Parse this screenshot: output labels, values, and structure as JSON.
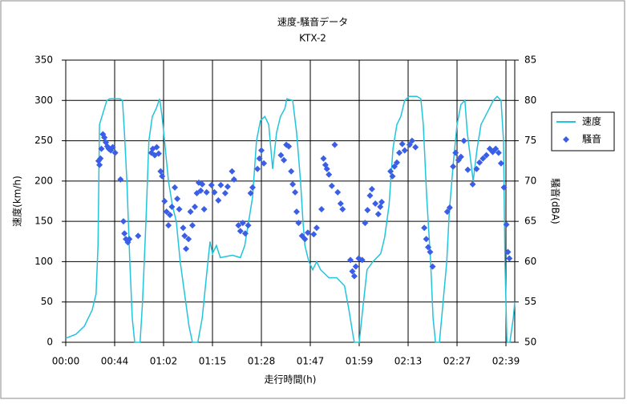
{
  "chart_data": {
    "type": "line+scatter",
    "title": "速度-騒音データ",
    "subtitle": "KTX-2",
    "xlabel": "走行時間(h)",
    "ylabel": "速度(km/h)",
    "y2label": "騒音(dBA)",
    "xlim": [
      0,
      91.8
    ],
    "xticks": [
      {
        "value": 0,
        "label": "00:00"
      },
      {
        "value": 10,
        "label": "00:44"
      },
      {
        "value": 20,
        "label": "01:02"
      },
      {
        "value": 30,
        "label": "01:15"
      },
      {
        "value": 40,
        "label": "01:28"
      },
      {
        "value": 50,
        "label": "01:47"
      },
      {
        "value": 60,
        "label": "01:59"
      },
      {
        "value": 70,
        "label": "02:13"
      },
      {
        "value": 80,
        "label": "02:27"
      },
      {
        "value": 90,
        "label": "02:39"
      }
    ],
    "ylim": [
      0,
      350
    ],
    "yticks": [
      0,
      50,
      100,
      150,
      200,
      250,
      300,
      350
    ],
    "y2lim": [
      50,
      85
    ],
    "y2ticks": [
      50,
      55,
      60,
      65,
      70,
      75,
      80,
      85
    ],
    "grid": true,
    "legend": "right",
    "series": [
      {
        "name": "速度",
        "type": "line",
        "color": "#22c4dc",
        "x": [
          0,
          2.1,
          3.8,
          5.4,
          6.2,
          6.6,
          6.9,
          7.4,
          7.9,
          8.4,
          9.0,
          11.1,
          11.6,
          12.0,
          12.5,
          13.1,
          13.6,
          14.1,
          15.2,
          15.7,
          16.4,
          17.0,
          17.7,
          18.5,
          19.2,
          19.7,
          20.2,
          21.0,
          21.8,
          22.6,
          23.4,
          24.3,
          25.2,
          25.9,
          27.0,
          27.9,
          28.9,
          29.5,
          30.0,
          30.8,
          31.6,
          34.1,
          35.7,
          36.6,
          37.4,
          38.2,
          39.0,
          39.8,
          40.7,
          41.5,
          42.3,
          43.1,
          43.9,
          44.8,
          45.2,
          46.4,
          47.2,
          48.0,
          48.5,
          48.9,
          49.7,
          50.5,
          51.3,
          52.1,
          53.8,
          55.4,
          57.0,
          57.9,
          58.7,
          59.0,
          60.0,
          60.7,
          61.6,
          62.8,
          64.4,
          65.2,
          66.1,
          66.9,
          67.7,
          68.5,
          69.3,
          70.2,
          71.8,
          72.6,
          73.1,
          73.8,
          74.6,
          75.1,
          75.6,
          76.4,
          77.0,
          77.9,
          78.4,
          79.2,
          80.0,
          80.8,
          81.6,
          82.1,
          83.3,
          84.1,
          84.9,
          86.6,
          87.4,
          88.2,
          89.0,
          89.5,
          89.8,
          90.2,
          90.8,
          91.5,
          91.8
        ],
        "values": [
          5,
          10,
          20,
          40,
          60,
          120,
          270,
          280,
          290,
          300,
          302,
          302,
          300,
          260,
          200,
          100,
          30,
          0,
          0,
          50,
          150,
          250,
          280,
          290,
          302,
          280,
          250,
          200,
          170,
          150,
          100,
          60,
          20,
          0,
          0,
          30,
          90,
          125,
          110,
          120,
          105,
          108,
          105,
          120,
          150,
          180,
          250,
          275,
          280,
          270,
          215,
          260,
          280,
          290,
          302,
          300,
          260,
          200,
          150,
          120,
          100,
          90,
          100,
          90,
          80,
          80,
          70,
          40,
          10,
          0,
          0,
          40,
          90,
          100,
          110,
          130,
          170,
          240,
          270,
          280,
          300,
          305,
          305,
          302,
          270,
          180,
          100,
          30,
          0,
          0,
          40,
          100,
          160,
          220,
          270,
          295,
          300,
          260,
          200,
          240,
          270,
          290,
          300,
          305,
          300,
          250,
          100,
          0,
          0,
          30,
          50
        ]
      },
      {
        "name": "騒音",
        "type": "scatter",
        "axis": "y2",
        "color": "#3a5fe6",
        "x": [
          6.7,
          6.9,
          7.1,
          7.3,
          7.6,
          7.9,
          8.2,
          8.5,
          8.8,
          9.2,
          9.6,
          10.1,
          11.2,
          11.8,
          12.0,
          12.3,
          12.7,
          13.0,
          14.8,
          17.5,
          17.8,
          18.2,
          18.6,
          19.0,
          19.4,
          19.7,
          20.2,
          20.6,
          21.0,
          21.3,
          21.7,
          22.3,
          22.8,
          23.2,
          24.0,
          24.3,
          24.6,
          25.1,
          25.5,
          25.9,
          26.4,
          26.8,
          27.2,
          27.6,
          27.9,
          28.3,
          28.8,
          29.8,
          30.4,
          31.2,
          31.7,
          32.6,
          33.1,
          34.0,
          34.4,
          35.3,
          35.7,
          36.2,
          36.7,
          37.3,
          37.8,
          38.2,
          39.2,
          39.6,
          40.0,
          40.5,
          44.0,
          44.6,
          45.1,
          45.6,
          46.1,
          46.4,
          46.9,
          47.2,
          47.6,
          48.3,
          48.9,
          49.5,
          50.7,
          51.3,
          52.3,
          52.7,
          53.1,
          53.4,
          53.8,
          54.4,
          55.0,
          55.6,
          56.2,
          56.6,
          58.2,
          58.6,
          59.0,
          59.3,
          59.9,
          60.6,
          61.2,
          61.7,
          62.2,
          62.6,
          63.3,
          63.9,
          64.3,
          64.6,
          66.4,
          66.8,
          67.2,
          67.7,
          68.2,
          68.8,
          69.3,
          70.3,
          70.8,
          71.5,
          73.3,
          73.7,
          74.1,
          74.5,
          75.0,
          78.0,
          78.5,
          79.2,
          79.7,
          80.3,
          80.8,
          81.4,
          82.2,
          83.2,
          84.0,
          84.6,
          85.3,
          86.0,
          86.7,
          87.3,
          87.9,
          88.5,
          89.0,
          89.6,
          90.1,
          90.4,
          90.7
        ],
        "values": [
          72.5,
          72,
          72.8,
          74,
          75.8,
          75.4,
          74.8,
          74.3,
          74,
          73.8,
          74.2,
          73.5,
          70.2,
          65,
          63.5,
          62.8,
          62.4,
          62.8,
          63.2,
          73.5,
          74,
          73.2,
          74.2,
          73.4,
          71.2,
          70.6,
          67.5,
          66.2,
          64.5,
          65.8,
          66.8,
          69.2,
          67.8,
          66.5,
          64.2,
          63.2,
          61.6,
          62.8,
          66.2,
          64.5,
          66.8,
          68.5,
          69.8,
          68.8,
          69.6,
          66.5,
          68.6,
          69.5,
          68.6,
          67.6,
          69.5,
          68.5,
          69.3,
          71.2,
          70.2,
          64.5,
          63.8,
          64.8,
          63.5,
          64.5,
          68.5,
          69.2,
          71.5,
          72.8,
          73.8,
          72.2,
          73.2,
          72.6,
          74.5,
          74.3,
          71.2,
          69.6,
          68.6,
          66.2,
          64.8,
          63.2,
          62.8,
          63.6,
          63.4,
          64.2,
          66.5,
          72.8,
          72,
          71.5,
          70.8,
          69.4,
          74.5,
          68.6,
          67.2,
          66.5,
          60.2,
          58.8,
          58.2,
          59.4,
          60.4,
          60.2,
          64.8,
          66.4,
          68.2,
          69,
          67.2,
          65.9,
          66.8,
          67.4,
          71.2,
          70.6,
          71.8,
          72.3,
          73.5,
          74.6,
          73.8,
          74.5,
          75,
          74.2,
          64.2,
          62.8,
          61.8,
          61.2,
          59.4,
          66.2,
          66.7,
          71.8,
          73.5,
          72.6,
          73,
          75,
          71.4,
          69.6,
          71.5,
          72.3,
          72.8,
          73.2,
          74,
          73.6,
          74,
          73.5,
          72.2,
          69.2,
          64.6,
          61.2,
          60.4
        ]
      }
    ]
  }
}
